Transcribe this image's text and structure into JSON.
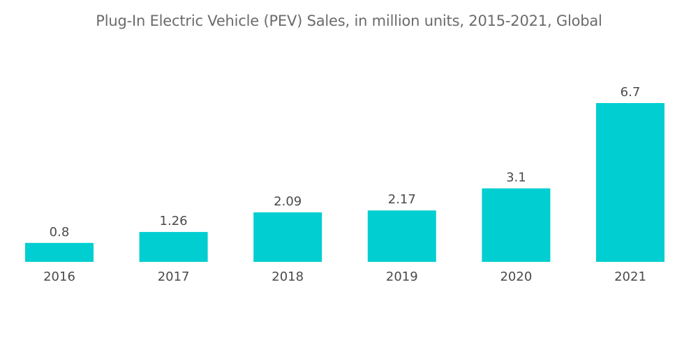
{
  "chart_data": {
    "type": "bar",
    "title": "Plug-In Electric Vehicle (PEV) Sales, in million units, 2015-2021, Global",
    "xlabel": "",
    "ylabel": "",
    "categories": [
      "2016",
      "2017",
      "2018",
      "2019",
      "2020",
      "2021"
    ],
    "values": [
      0.8,
      1.26,
      2.09,
      2.17,
      3.1,
      6.7
    ],
    "data_labels": [
      "0.8",
      "1.26",
      "2.09",
      "2.17",
      "3.1",
      "6.7"
    ],
    "ylim": [
      0,
      6.7
    ],
    "grid": false,
    "legend": "none",
    "bar_color": "#00ced1"
  }
}
